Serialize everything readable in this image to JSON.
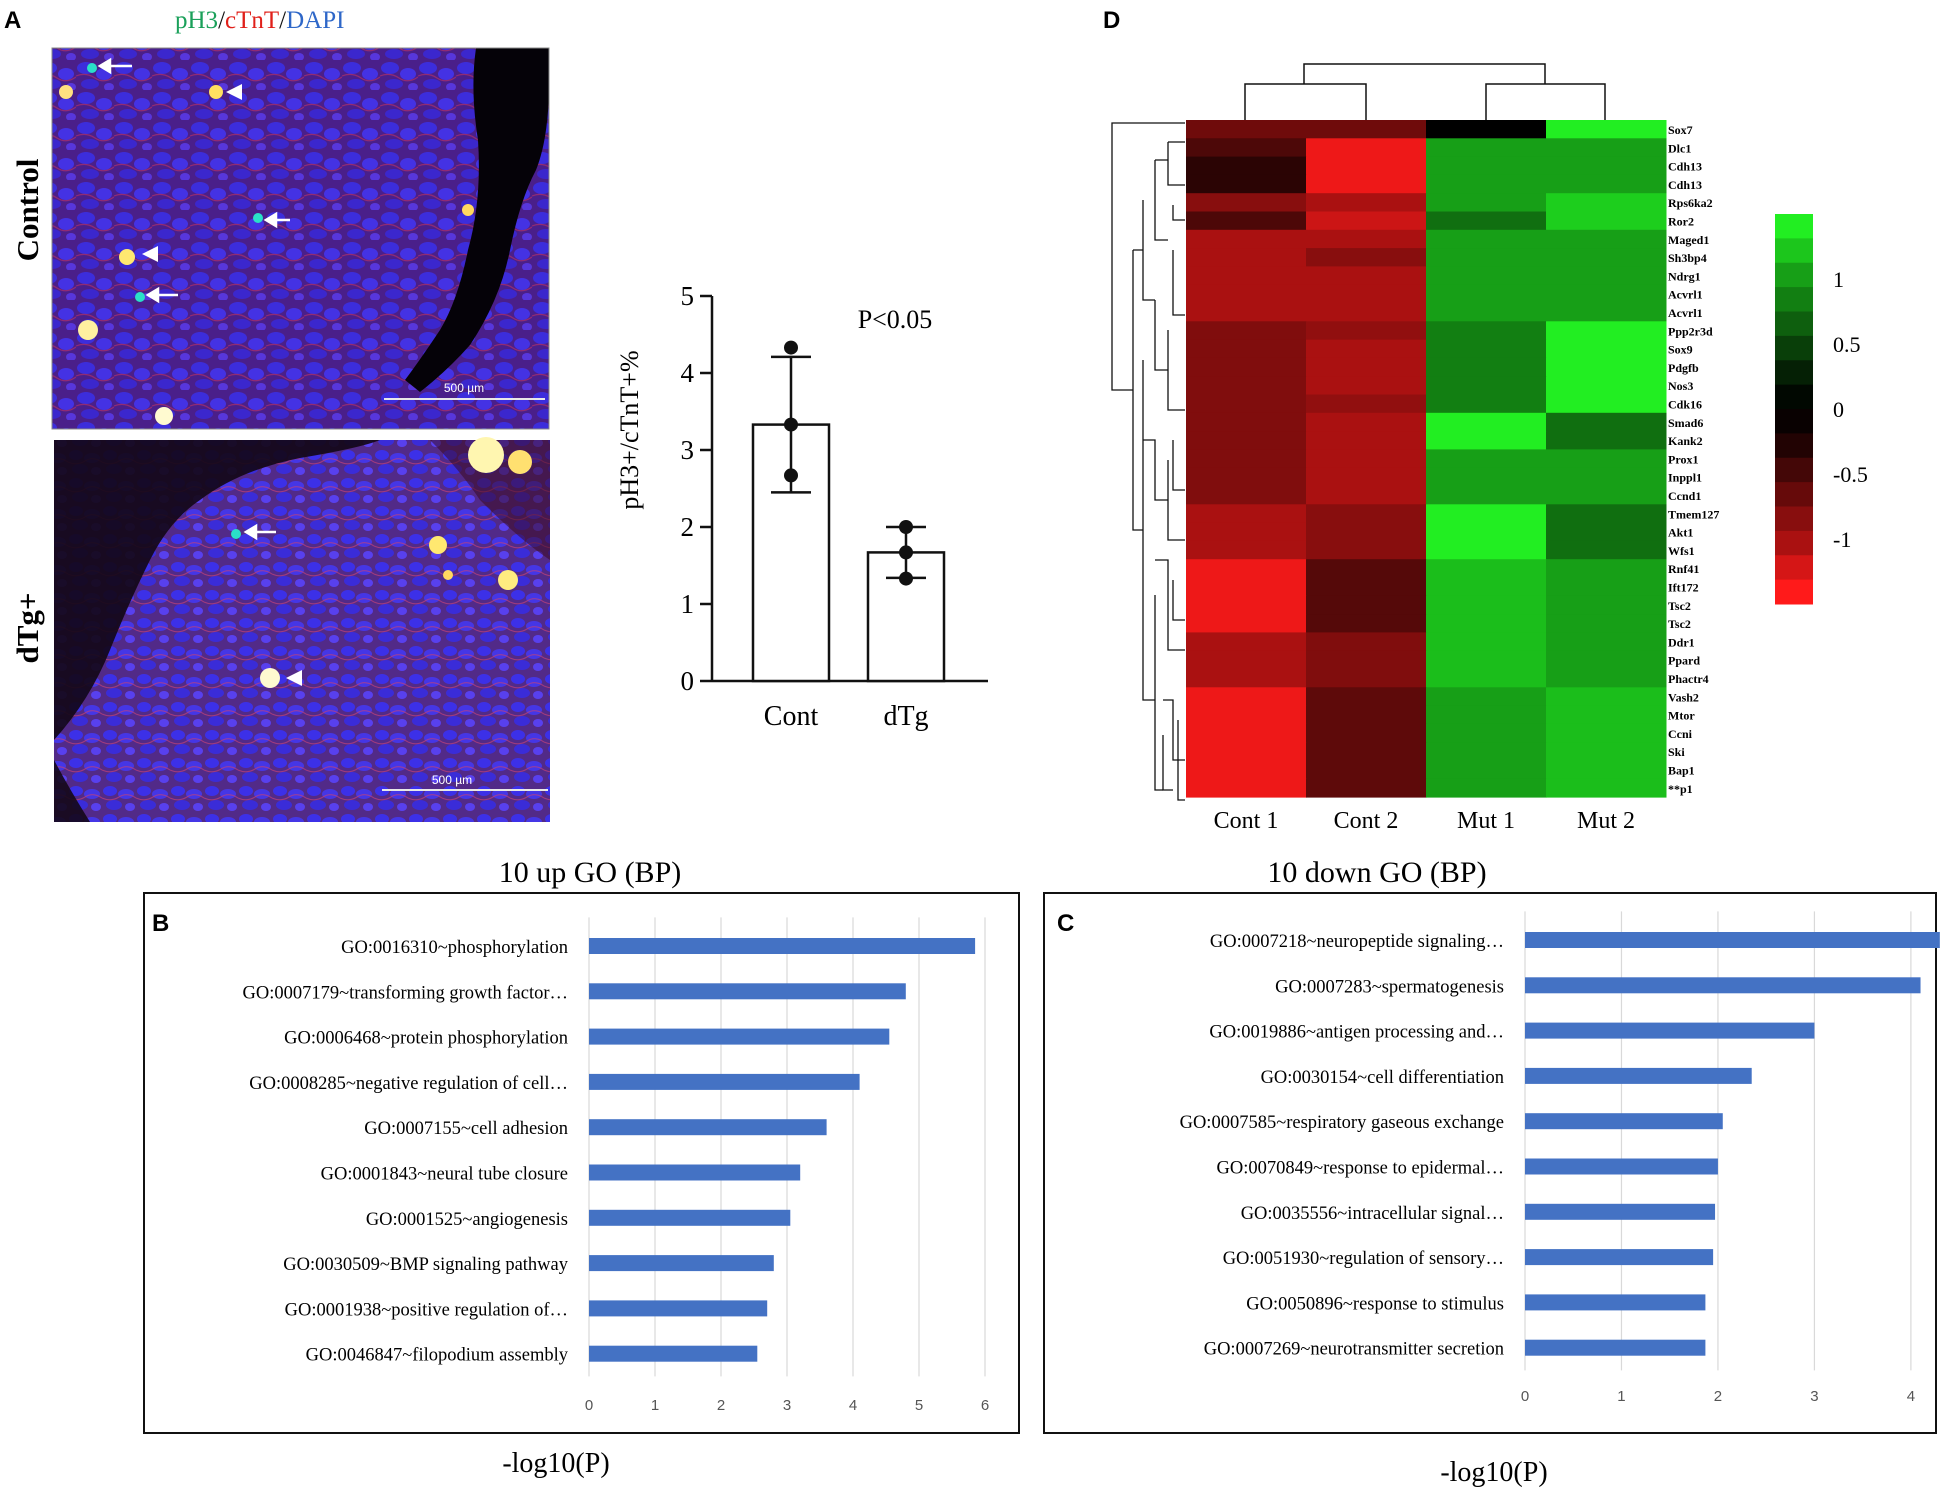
{
  "panel_labels": {
    "a": "A",
    "b": "B",
    "c": "C",
    "d": "D"
  },
  "panel_a": {
    "stain": {
      "ph3": "pH3",
      "sep1": "/",
      "ctnt": "cTnT",
      "sep2": "/",
      "dapi": "DAPI"
    },
    "row_labels": [
      "Control",
      "dTg+"
    ],
    "scale_bar_labels": [
      "500 µm",
      "500 µm"
    ],
    "colors": {
      "ph3": "#1aa05a",
      "ctnt": "#e0201a",
      "dapi": "#2e67c8"
    }
  },
  "chart_data": [
    {
      "id": "proliferation",
      "type": "bar",
      "categories": [
        "Cont",
        "dTg"
      ],
      "values": [
        3.33,
        1.67
      ],
      "errors": [
        0.88,
        0.33
      ],
      "points": [
        [
          4.33,
          3.33,
          2.67
        ],
        [
          2.0,
          1.67,
          1.33
        ]
      ],
      "ylabel": "pH3+/cTnT+%",
      "yticks": [
        "0",
        "1",
        "2",
        "3",
        "4",
        "5"
      ],
      "ylim": [
        0,
        5
      ],
      "annotation": "P<0.05"
    },
    {
      "id": "heatmap",
      "type": "heatmap",
      "columns": [
        "Cont 1",
        "Cont 2",
        "Mut 1",
        "Mut 2"
      ],
      "rows": [
        "Sox7",
        "Dlc1",
        "Cdh13",
        "Cdh13",
        "Rps6ka2",
        "Ror2",
        "Maged1",
        "Sh3bp4",
        "Ndrg1",
        "Acvrl1",
        "Acvrl1",
        "Ppp2r3d",
        "Sox9",
        "Pdgfb",
        "Nos3",
        "Cdk16",
        "Smad6",
        "Kank2",
        "Prox1",
        "Inppl1",
        "Ccnd1",
        "Tmem127",
        "Akt1",
        "Wfs1",
        "Rnf41",
        "Ift172",
        "Tsc2",
        "Tsc2",
        "Ddr1",
        "Ppard",
        "Phactr4",
        "Vash2",
        "Mtor",
        "Ccni",
        "Ski",
        "Bap1",
        "**p1"
      ],
      "values": [
        [
          -0.65,
          -0.65,
          0.0,
          1.5
        ],
        [
          -0.45,
          -1.4,
          1.0,
          1.0
        ],
        [
          -0.25,
          -1.4,
          1.0,
          1.0
        ],
        [
          -0.25,
          -1.4,
          1.0,
          1.0
        ],
        [
          -0.8,
          -1.0,
          1.0,
          1.3
        ],
        [
          -0.45,
          -1.2,
          0.7,
          1.3
        ],
        [
          -1.0,
          -1.0,
          1.0,
          1.0
        ],
        [
          -1.0,
          -0.8,
          1.0,
          1.0
        ],
        [
          -1.0,
          -1.0,
          1.0,
          1.0
        ],
        [
          -1.0,
          -1.0,
          1.0,
          1.0
        ],
        [
          -1.0,
          -1.0,
          1.0,
          1.0
        ],
        [
          -0.75,
          -0.85,
          0.8,
          1.5
        ],
        [
          -0.75,
          -1.0,
          0.8,
          1.5
        ],
        [
          -0.75,
          -1.0,
          0.8,
          1.5
        ],
        [
          -0.75,
          -1.0,
          0.8,
          1.5
        ],
        [
          -0.75,
          -0.85,
          0.8,
          1.5
        ],
        [
          -0.75,
          -1.0,
          1.5,
          0.7
        ],
        [
          -0.75,
          -1.0,
          1.5,
          0.7
        ],
        [
          -0.75,
          -1.0,
          1.0,
          1.0
        ],
        [
          -0.75,
          -1.0,
          1.0,
          1.0
        ],
        [
          -0.75,
          -1.0,
          1.0,
          1.0
        ],
        [
          -1.0,
          -0.8,
          1.5,
          0.7
        ],
        [
          -1.0,
          -0.8,
          1.5,
          0.7
        ],
        [
          -1.0,
          -0.8,
          1.5,
          0.7
        ],
        [
          -1.4,
          -0.5,
          1.2,
          1.0
        ],
        [
          -1.4,
          -0.5,
          1.2,
          1.0
        ],
        [
          -1.4,
          -0.5,
          1.2,
          1.0
        ],
        [
          -1.4,
          -0.5,
          1.2,
          1.0
        ],
        [
          -1.0,
          -0.75,
          1.2,
          1.0
        ],
        [
          -1.0,
          -0.75,
          1.2,
          1.0
        ],
        [
          -1.0,
          -0.75,
          1.2,
          1.0
        ],
        [
          -1.4,
          -0.55,
          1.0,
          1.2
        ],
        [
          -1.4,
          -0.55,
          1.0,
          1.2
        ],
        [
          -1.4,
          -0.55,
          1.0,
          1.2
        ],
        [
          -1.4,
          -0.55,
          1.0,
          1.2
        ],
        [
          -1.4,
          -0.55,
          1.0,
          1.2
        ],
        [
          -1.4,
          -0.55,
          1.0,
          1.2
        ]
      ],
      "color_scale": {
        "min": -1.5,
        "max": 1.5,
        "low": "#ff1a1a",
        "mid": "#000000",
        "high": "#22ee22"
      },
      "legend_ticks": [
        "1",
        "0.5",
        "0",
        "-0.5",
        "-1"
      ],
      "legend_tick_values": [
        1,
        0.5,
        0,
        -0.5,
        -1
      ],
      "legend_steps": [
        1.5,
        1.25,
        1.0,
        0.8,
        0.6,
        0.4,
        0.2,
        0.05,
        -0.05,
        -0.2,
        -0.4,
        -0.6,
        -0.8,
        -1.0,
        -1.25,
        -1.5
      ]
    },
    {
      "id": "go-up",
      "type": "bar",
      "orientation": "horizontal",
      "title": "10 up GO (BP)",
      "xlabel": "-log10(P)",
      "xlim": [
        0,
        6
      ],
      "xticks": [
        "0",
        "1",
        "2",
        "3",
        "4",
        "5",
        "6"
      ],
      "categories": [
        "GO:0016310~phosphorylation",
        "GO:0007179~transforming growth factor…",
        "GO:0006468~protein phosphorylation",
        "GO:0008285~negative regulation of cell…",
        "GO:0007155~cell adhesion",
        "GO:0001843~neural tube closure",
        "GO:0001525~angiogenesis",
        "GO:0030509~BMP signaling pathway",
        "GO:0001938~positive regulation of…",
        "GO:0046847~filopodium assembly"
      ],
      "values": [
        5.85,
        4.8,
        4.55,
        4.1,
        3.6,
        3.2,
        3.05,
        2.8,
        2.7,
        2.55
      ],
      "color": "#4472c4"
    },
    {
      "id": "go-down",
      "type": "bar",
      "orientation": "horizontal",
      "title": "10 down GO (BP)",
      "xlabel": "-log10(P)",
      "xlim": [
        0,
        4.25
      ],
      "xticks": [
        "0",
        "1",
        "2",
        "3",
        "4"
      ],
      "categories": [
        "GO:0007218~neuropeptide signaling…",
        "GO:0007283~spermatogenesis",
        "GO:0019886~antigen processing and…",
        "GO:0030154~cell differentiation",
        "GO:0007585~respiratory gaseous exchange",
        "GO:0070849~response to epidermal…",
        "GO:0035556~intracellular signal…",
        "GO:0051930~regulation of sensory…",
        "GO:0050896~response to stimulus",
        "GO:0007269~neurotransmitter secretion"
      ],
      "values": [
        4.3,
        4.1,
        3.0,
        2.35,
        2.05,
        2.0,
        1.97,
        1.95,
        1.87,
        1.87
      ],
      "color": "#4472c4"
    }
  ]
}
